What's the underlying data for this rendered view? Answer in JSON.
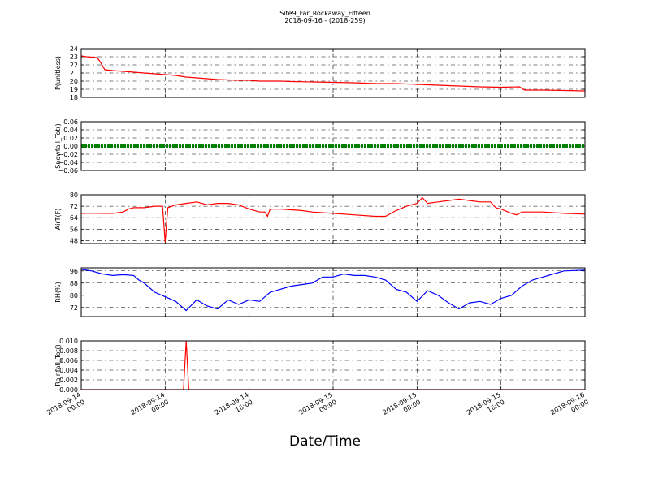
{
  "title": "Site9_Far_Rockaway_Fifteen",
  "subtitle": "2018-09-16 - (2018-259)",
  "xlabel": "Date/Time",
  "chart_data": {
    "type": "line",
    "title": "Site9_Far_Rockaway_Fifteen",
    "subtitle": "2018-09-16 - (2018-259)",
    "xlabel": "Date/Time",
    "x_range": [
      "2018-09-14 00:00",
      "2018-09-16 00:00"
    ],
    "x_ticks": [
      {
        "x": "2018-09-14 00:00",
        "label1": "2018-09-14",
        "label2": "00:00"
      },
      {
        "x": "2018-09-14 08:00",
        "label1": "2018-09-14",
        "label2": "08:00"
      },
      {
        "x": "2018-09-14 16:00",
        "label1": "2018-09-14",
        "label2": "16:00"
      },
      {
        "x": "2018-09-15 00:00",
        "label1": "2018-09-15",
        "label2": "00:00"
      },
      {
        "x": "2018-09-15 08:00",
        "label1": "2018-09-15",
        "label2": "08:00"
      },
      {
        "x": "2018-09-15 16:00",
        "label1": "2018-09-15",
        "label2": "16:00"
      },
      {
        "x": "2018-09-16 00:00",
        "label1": "2018-09-16",
        "label2": "00:00"
      }
    ],
    "grid": true,
    "panels": [
      {
        "ylabel": "P(unitless)",
        "ylim": [
          18,
          24
        ],
        "yticks": [
          "18",
          "19",
          "20",
          "21",
          "22",
          "23",
          "24"
        ],
        "color": "#ff0000",
        "marker": "line",
        "points": [
          [
            "2018-09-14 00:00",
            23.1
          ],
          [
            "2018-09-14 00:30",
            23.0
          ],
          [
            "2018-09-14 01:30",
            22.9
          ],
          [
            "2018-09-14 01:45",
            22.5
          ],
          [
            "2018-09-14 02:15",
            21.4
          ],
          [
            "2018-09-14 03:00",
            21.3
          ],
          [
            "2018-09-14 04:00",
            21.2
          ],
          [
            "2018-09-14 05:00",
            21.1
          ],
          [
            "2018-09-14 06:00",
            21.0
          ],
          [
            "2018-09-14 07:00",
            20.9
          ],
          [
            "2018-09-14 08:00",
            20.8
          ],
          [
            "2018-09-14 09:00",
            20.7
          ],
          [
            "2018-09-14 10:00",
            20.5
          ],
          [
            "2018-09-14 11:00",
            20.4
          ],
          [
            "2018-09-14 12:00",
            20.3
          ],
          [
            "2018-09-14 13:00",
            20.2
          ],
          [
            "2018-09-14 14:00",
            20.15
          ],
          [
            "2018-09-14 15:00",
            20.1
          ],
          [
            "2018-09-14 16:00",
            20.1
          ],
          [
            "2018-09-14 17:00",
            20.0
          ],
          [
            "2018-09-14 18:00",
            20.0
          ],
          [
            "2018-09-14 19:00",
            20.0
          ],
          [
            "2018-09-14 20:00",
            19.95
          ],
          [
            "2018-09-14 22:00",
            19.9
          ],
          [
            "2018-09-15 00:00",
            19.85
          ],
          [
            "2018-09-15 02:00",
            19.8
          ],
          [
            "2018-09-15 04:00",
            19.7
          ],
          [
            "2018-09-15 06:00",
            19.7
          ],
          [
            "2018-09-15 08:00",
            19.6
          ],
          [
            "2018-09-15 10:00",
            19.5
          ],
          [
            "2018-09-15 12:00",
            19.4
          ],
          [
            "2018-09-15 14:00",
            19.3
          ],
          [
            "2018-09-15 16:00",
            19.25
          ],
          [
            "2018-09-15 17:45",
            19.3
          ],
          [
            "2018-09-15 18:15",
            18.9
          ],
          [
            "2018-09-15 20:00",
            18.9
          ],
          [
            "2018-09-15 22:00",
            18.85
          ],
          [
            "2018-09-16 00:00",
            18.8
          ]
        ]
      },
      {
        "ylabel": "Snowfall_Tot()",
        "ylim": [
          -0.06,
          0.06
        ],
        "yticks": [
          "−0.06",
          "−0.04",
          "−0.02",
          "0.00",
          "0.02",
          "0.04",
          "0.06"
        ],
        "color": "#008000",
        "marker": "dots",
        "points": [
          [
            "2018-09-14 00:00",
            0.0
          ],
          [
            "2018-09-15 00:00",
            0.0
          ],
          [
            "2018-09-16 00:00",
            0.0
          ]
        ]
      },
      {
        "ylabel": "AirT(F)",
        "ylim": [
          46,
          80
        ],
        "yticks": [
          "48",
          "56",
          "64",
          "72",
          "80"
        ],
        "color": "#ff0000",
        "marker": "line",
        "points": [
          [
            "2018-09-14 00:00",
            67
          ],
          [
            "2018-09-14 01:00",
            67.2
          ],
          [
            "2018-09-14 02:00",
            67.0
          ],
          [
            "2018-09-14 03:00",
            67.0
          ],
          [
            "2018-09-14 04:00",
            68.0
          ],
          [
            "2018-09-14 04:30",
            70.0
          ],
          [
            "2018-09-14 05:00",
            71.0
          ],
          [
            "2018-09-14 06:00",
            71.0
          ],
          [
            "2018-09-14 07:00",
            72.0
          ],
          [
            "2018-09-14 07:45",
            72.0
          ],
          [
            "2018-09-14 08:00",
            47.0
          ],
          [
            "2018-09-14 08:15",
            71.0
          ],
          [
            "2018-09-14 09:00",
            73.0
          ],
          [
            "2018-09-14 10:00",
            74.0
          ],
          [
            "2018-09-14 11:00",
            75.0
          ],
          [
            "2018-09-14 12:00",
            73.0
          ],
          [
            "2018-09-14 13:00",
            74.0
          ],
          [
            "2018-09-14 14:00",
            74.0
          ],
          [
            "2018-09-14 15:00",
            73.0
          ],
          [
            "2018-09-14 16:00",
            70.0
          ],
          [
            "2018-09-14 17:00",
            68.0
          ],
          [
            "2018-09-14 17:30",
            68.0
          ],
          [
            "2018-09-14 17:45",
            65.0
          ],
          [
            "2018-09-14 18:00",
            70.0
          ],
          [
            "2018-09-14 19:00",
            70.0
          ],
          [
            "2018-09-14 21:00",
            69.0
          ],
          [
            "2018-09-14 22:00",
            68.0
          ],
          [
            "2018-09-15 00:00",
            67.0
          ],
          [
            "2018-09-15 02:00",
            66.0
          ],
          [
            "2018-09-15 04:00",
            65.0
          ],
          [
            "2018-09-15 05:00",
            65.0
          ],
          [
            "2018-09-15 06:00",
            69.0
          ],
          [
            "2018-09-15 07:00",
            72.0
          ],
          [
            "2018-09-15 08:00",
            74.0
          ],
          [
            "2018-09-15 08:30",
            78.0
          ],
          [
            "2018-09-15 09:00",
            74.0
          ],
          [
            "2018-09-15 10:00",
            75.0
          ],
          [
            "2018-09-15 11:00",
            76.0
          ],
          [
            "2018-09-15 12:00",
            77.0
          ],
          [
            "2018-09-15 13:00",
            76.0
          ],
          [
            "2018-09-15 14:00",
            75.0
          ],
          [
            "2018-09-15 15:00",
            75.0
          ],
          [
            "2018-09-15 15:30",
            71.0
          ],
          [
            "2018-09-15 16:00",
            70.0
          ],
          [
            "2018-09-15 17:00",
            67.0
          ],
          [
            "2018-09-15 17:30",
            66.0
          ],
          [
            "2018-09-15 18:00",
            68.0
          ],
          [
            "2018-09-15 20:00",
            68.0
          ],
          [
            "2018-09-15 22:00",
            67.0
          ],
          [
            "2018-09-16 00:00",
            66.5
          ]
        ]
      },
      {
        "ylabel": "RH(%)",
        "ylim": [
          66,
          98
        ],
        "yticks": [
          "72",
          "80",
          "88",
          "96"
        ],
        "color": "#0000ff",
        "marker": "line",
        "points": [
          [
            "2018-09-14 00:00",
            97.0
          ],
          [
            "2018-09-14 01:00",
            96.0
          ],
          [
            "2018-09-14 02:00",
            94.0
          ],
          [
            "2018-09-14 03:00",
            93.0
          ],
          [
            "2018-09-14 04:00",
            93.5
          ],
          [
            "2018-09-14 05:00",
            93.0
          ],
          [
            "2018-09-14 05:30",
            90.0
          ],
          [
            "2018-09-14 06:00",
            88.0
          ],
          [
            "2018-09-14 07:00",
            82.0
          ],
          [
            "2018-09-14 08:00",
            79.0
          ],
          [
            "2018-09-14 09:00",
            76.0
          ],
          [
            "2018-09-14 10:00",
            70.0
          ],
          [
            "2018-09-14 11:00",
            77.0
          ],
          [
            "2018-09-14 12:00",
            73.0
          ],
          [
            "2018-09-14 13:00",
            71.0
          ],
          [
            "2018-09-14 14:00",
            77.0
          ],
          [
            "2018-09-14 15:00",
            74.0
          ],
          [
            "2018-09-14 16:00",
            77.0
          ],
          [
            "2018-09-14 17:00",
            76.0
          ],
          [
            "2018-09-14 18:00",
            82.0
          ],
          [
            "2018-09-14 19:00",
            84.0
          ],
          [
            "2018-09-14 20:00",
            86.0
          ],
          [
            "2018-09-14 21:00",
            87.0
          ],
          [
            "2018-09-14 22:00",
            88.0
          ],
          [
            "2018-09-14 23:00",
            92.0
          ],
          [
            "2018-09-15 00:00",
            92.0
          ],
          [
            "2018-09-15 01:00",
            94.0
          ],
          [
            "2018-09-15 02:00",
            93.0
          ],
          [
            "2018-09-15 03:00",
            93.0
          ],
          [
            "2018-09-15 04:00",
            92.0
          ],
          [
            "2018-09-15 05:00",
            90.0
          ],
          [
            "2018-09-15 06:00",
            84.0
          ],
          [
            "2018-09-15 07:00",
            82.0
          ],
          [
            "2018-09-15 08:00",
            76.0
          ],
          [
            "2018-09-15 09:00",
            83.0
          ],
          [
            "2018-09-15 10:00",
            80.0
          ],
          [
            "2018-09-15 11:00",
            75.0
          ],
          [
            "2018-09-15 12:00",
            71.0
          ],
          [
            "2018-09-15 13:00",
            75.0
          ],
          [
            "2018-09-15 14:00",
            76.0
          ],
          [
            "2018-09-15 15:00",
            74.0
          ],
          [
            "2018-09-15 16:00",
            78.0
          ],
          [
            "2018-09-15 17:00",
            80.0
          ],
          [
            "2018-09-15 18:00",
            86.0
          ],
          [
            "2018-09-15 19:00",
            90.0
          ],
          [
            "2018-09-15 20:00",
            92.0
          ],
          [
            "2018-09-15 21:00",
            94.0
          ],
          [
            "2018-09-15 22:00",
            96.0
          ],
          [
            "2018-09-16 00:00",
            96.5
          ]
        ]
      },
      {
        "ylabel": "Rainfall_Tot()",
        "ylim": [
          0,
          0.01
        ],
        "yticks": [
          "0.000",
          "0.002",
          "0.004",
          "0.006",
          "0.008",
          "0.010"
        ],
        "color": "#ff0000",
        "marker": "line",
        "points": [
          [
            "2018-09-14 00:00",
            0.0
          ],
          [
            "2018-09-14 09:45",
            0.0
          ],
          [
            "2018-09-14 10:00",
            0.01
          ],
          [
            "2018-09-14 10:15",
            0.0
          ],
          [
            "2018-09-16 00:00",
            0.0
          ]
        ]
      }
    ]
  }
}
